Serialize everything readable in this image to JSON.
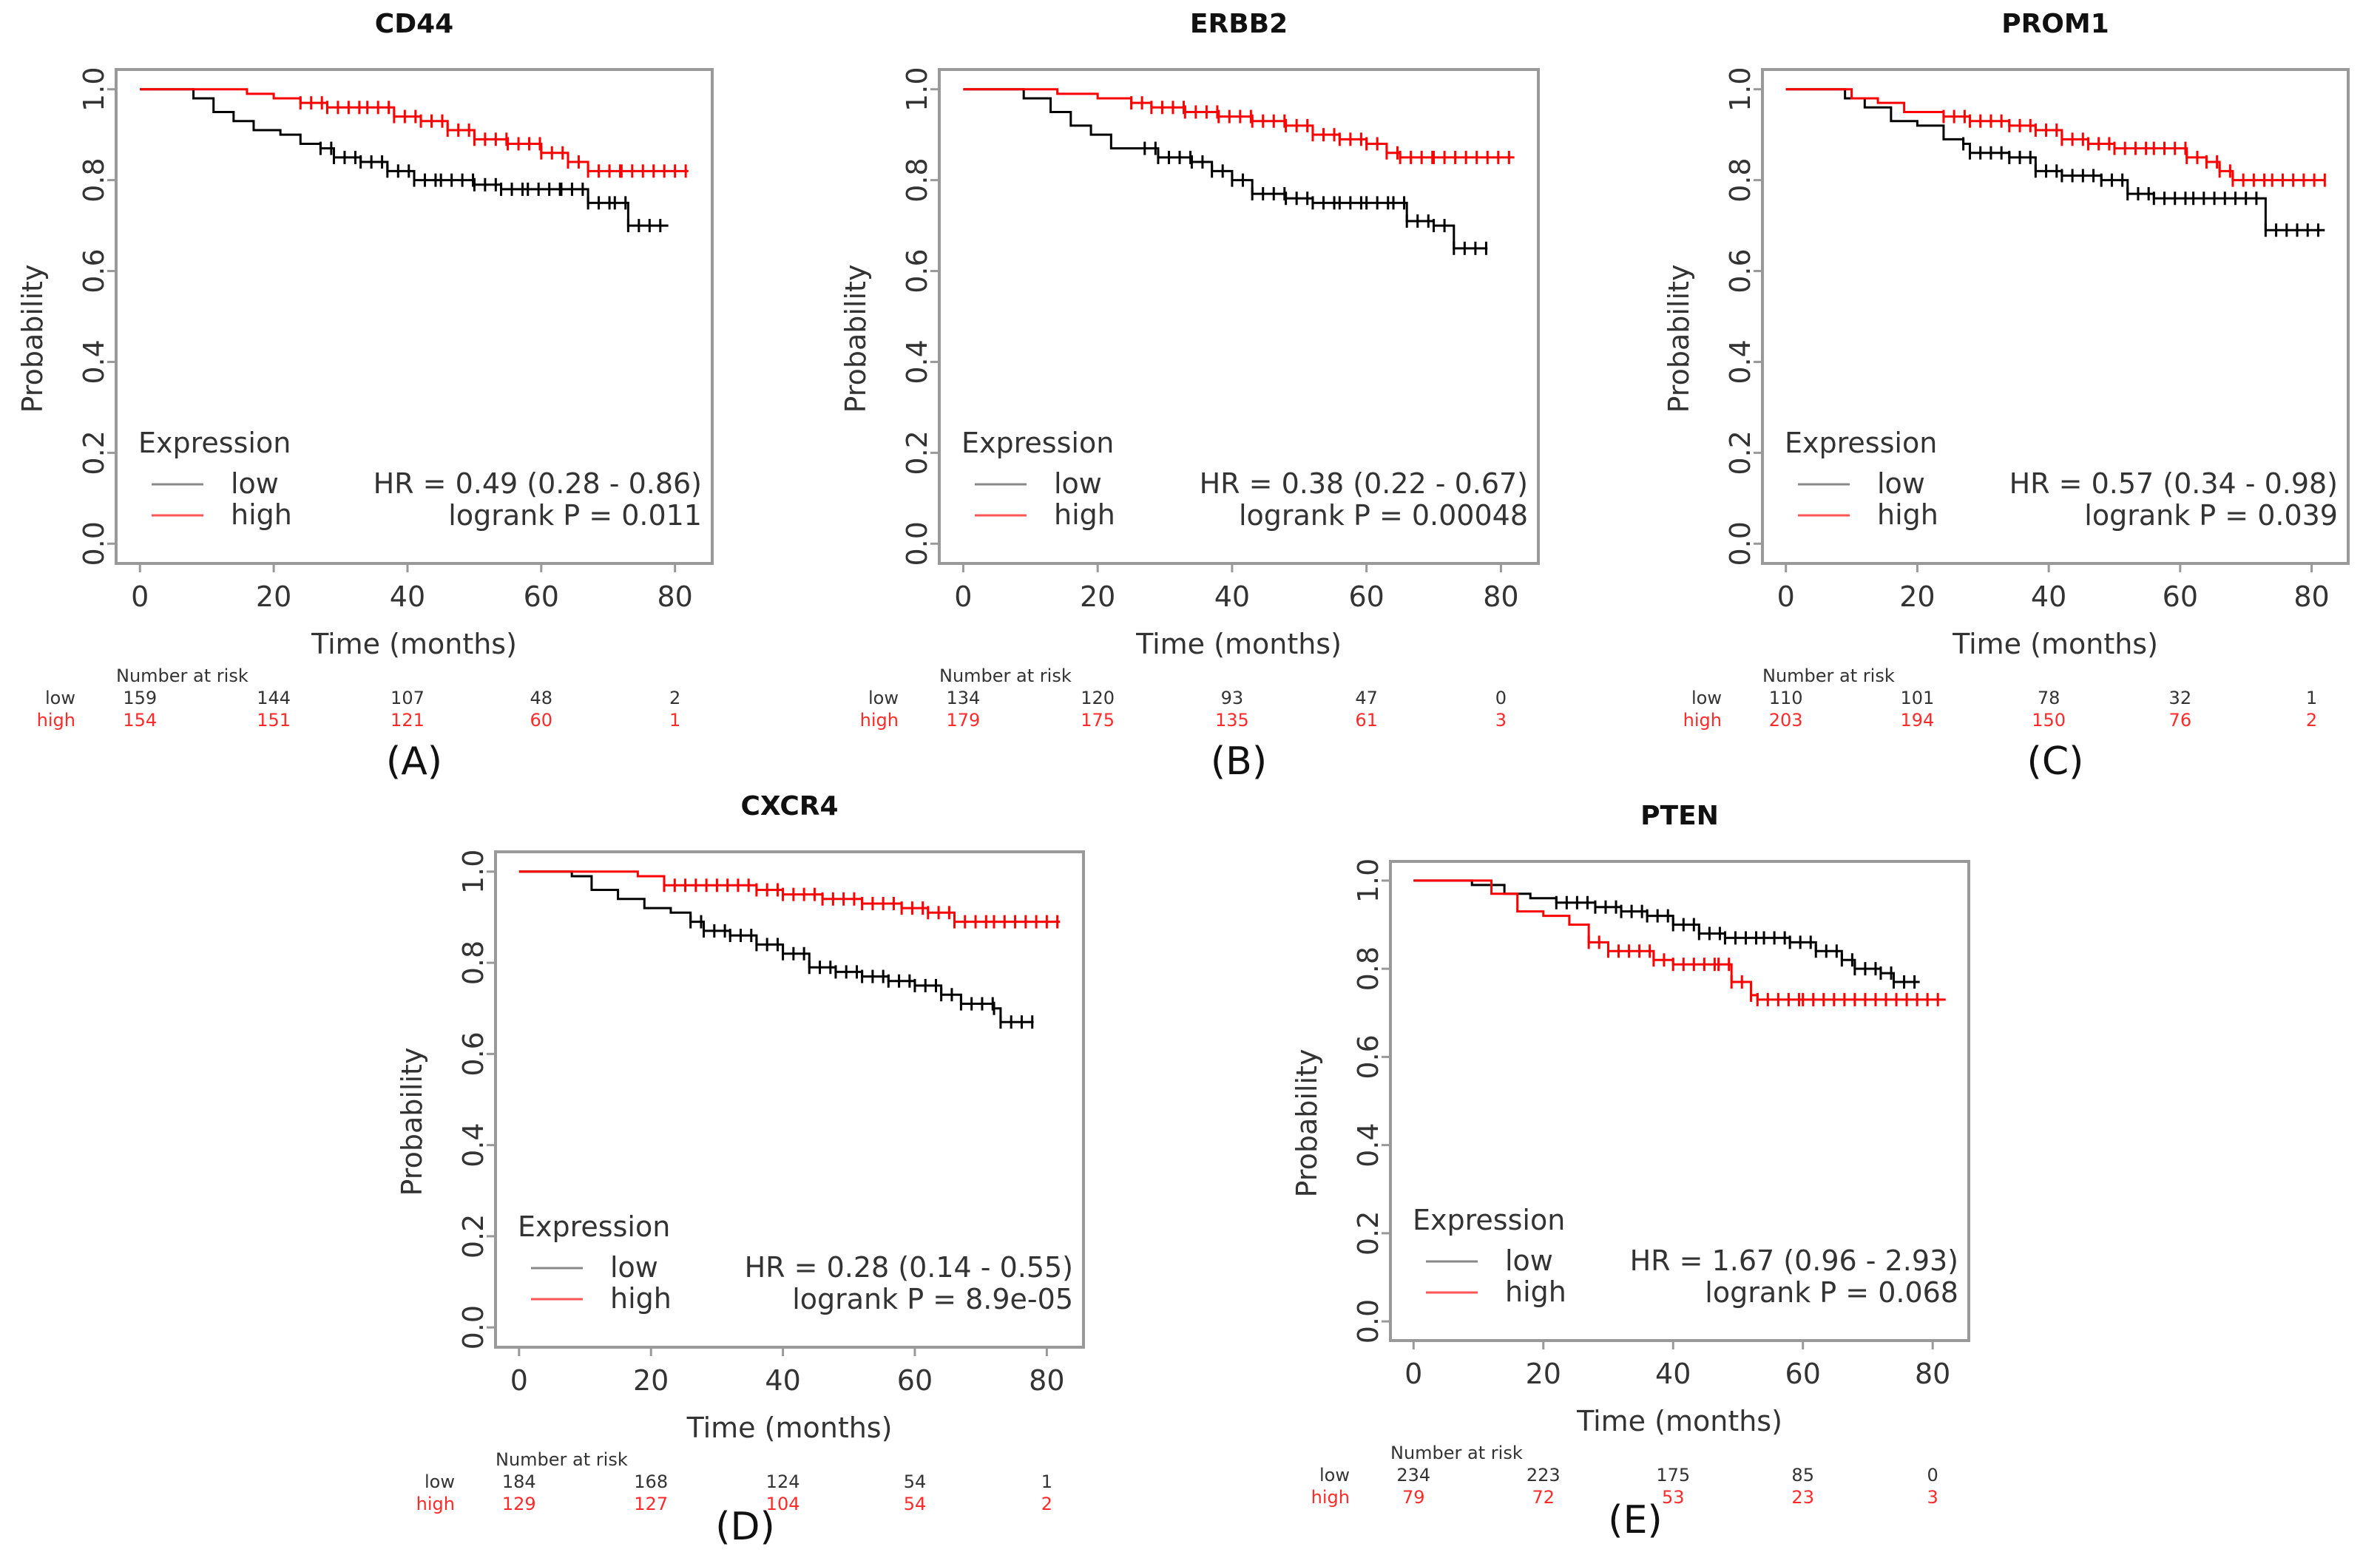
{
  "figure": {
    "colors": {
      "low": "#000000",
      "high": "#ff0000",
      "axis": "#999999",
      "low_legend": "#888888",
      "high_legend": "#ff5555"
    }
  },
  "chart_data": [
    {
      "type": "line",
      "panel_label": "(A)",
      "title": "CD44",
      "xlabel": "Time (months)",
      "ylabel": "Probability",
      "xlim": [
        0,
        82
      ],
      "ylim": [
        0,
        1
      ],
      "xticks": [
        "0",
        "20",
        "40",
        "60",
        "80"
      ],
      "yticks": [
        "0.0",
        "0.2",
        "0.4",
        "0.6",
        "0.8",
        "1.0"
      ],
      "legend": {
        "title": "Expression",
        "items": [
          "low",
          "high"
        ],
        "position": "bottom-left"
      },
      "stats": {
        "hr": "HR = 0.49 (0.28 - 0.86)",
        "logrank": "logrank P = 0.011"
      },
      "series": [
        {
          "name": "low",
          "points": [
            [
              0,
              1
            ],
            [
              5,
              1
            ],
            [
              8,
              0.98
            ],
            [
              11,
              0.95
            ],
            [
              14,
              0.93
            ],
            [
              17,
              0.91
            ],
            [
              21,
              0.9
            ],
            [
              24,
              0.88
            ],
            [
              27,
              0.87
            ],
            [
              29,
              0.85
            ],
            [
              33,
              0.84
            ],
            [
              37,
              0.82
            ],
            [
              41,
              0.8
            ],
            [
              45,
              0.8
            ],
            [
              50,
              0.79
            ],
            [
              54,
              0.78
            ],
            [
              58,
              0.78
            ],
            [
              63,
              0.78
            ],
            [
              67,
              0.75
            ],
            [
              71,
              0.75
            ],
            [
              73,
              0.7
            ],
            [
              79,
              0.7
            ]
          ]
        },
        {
          "name": "high",
          "points": [
            [
              0,
              1
            ],
            [
              13,
              1
            ],
            [
              16,
              0.99
            ],
            [
              20,
              0.98
            ],
            [
              24,
              0.97
            ],
            [
              28,
              0.96
            ],
            [
              34,
              0.96
            ],
            [
              38,
              0.94
            ],
            [
              42,
              0.93
            ],
            [
              46,
              0.91
            ],
            [
              50,
              0.89
            ],
            [
              55,
              0.88
            ],
            [
              60,
              0.86
            ],
            [
              64,
              0.84
            ],
            [
              67,
              0.82
            ],
            [
              72,
              0.82
            ],
            [
              82,
              0.82
            ]
          ]
        }
      ],
      "risk_table": {
        "header": "Number at risk",
        "times": [
          0,
          20,
          40,
          60,
          80
        ],
        "low_label": "low",
        "high_label": "high",
        "low": [
          "159",
          "144",
          "107",
          "48",
          "2"
        ],
        "high": [
          "154",
          "151",
          "121",
          "60",
          "1"
        ]
      }
    },
    {
      "type": "line",
      "panel_label": "(B)",
      "title": "ERBB2",
      "xlabel": "Time (months)",
      "ylabel": "Probability",
      "xlim": [
        0,
        82
      ],
      "ylim": [
        0,
        1
      ],
      "xticks": [
        "0",
        "20",
        "40",
        "60",
        "80"
      ],
      "yticks": [
        "0.0",
        "0.2",
        "0.4",
        "0.6",
        "0.8",
        "1.0"
      ],
      "legend": {
        "title": "Expression",
        "items": [
          "low",
          "high"
        ],
        "position": "bottom-left"
      },
      "stats": {
        "hr": "HR = 0.38 (0.22 - 0.67)",
        "logrank": "logrank P = 0.00048"
      },
      "series": [
        {
          "name": "low",
          "points": [
            [
              0,
              1
            ],
            [
              6,
              1
            ],
            [
              9,
              0.98
            ],
            [
              13,
              0.95
            ],
            [
              16,
              0.92
            ],
            [
              19,
              0.9
            ],
            [
              22,
              0.87
            ],
            [
              27,
              0.87
            ],
            [
              29,
              0.85
            ],
            [
              34,
              0.84
            ],
            [
              37,
              0.82
            ],
            [
              40,
              0.8
            ],
            [
              43,
              0.77
            ],
            [
              48,
              0.76
            ],
            [
              52,
              0.75
            ],
            [
              56,
              0.75
            ],
            [
              60,
              0.75
            ],
            [
              64,
              0.75
            ],
            [
              66,
              0.71
            ],
            [
              70,
              0.7
            ],
            [
              73,
              0.65
            ],
            [
              78,
              0.65
            ]
          ]
        },
        {
          "name": "high",
          "points": [
            [
              0,
              1
            ],
            [
              9,
              1
            ],
            [
              14,
              0.99
            ],
            [
              20,
              0.98
            ],
            [
              25,
              0.97
            ],
            [
              28,
              0.96
            ],
            [
              33,
              0.95
            ],
            [
              38,
              0.94
            ],
            [
              43,
              0.93
            ],
            [
              48,
              0.92
            ],
            [
              52,
              0.9
            ],
            [
              56,
              0.89
            ],
            [
              60,
              0.88
            ],
            [
              63,
              0.86
            ],
            [
              65,
              0.85
            ],
            [
              70,
              0.85
            ],
            [
              82,
              0.85
            ]
          ]
        }
      ],
      "risk_table": {
        "header": "Number at risk",
        "times": [
          0,
          20,
          40,
          60,
          80
        ],
        "low_label": "low",
        "high_label": "high",
        "low": [
          "134",
          "120",
          "93",
          "47",
          "0"
        ],
        "high": [
          "179",
          "175",
          "135",
          "61",
          "3"
        ]
      }
    },
    {
      "type": "line",
      "panel_label": "(C)",
      "title": "PROM1",
      "xlabel": "Time (months)",
      "ylabel": "Probability",
      "xlim": [
        0,
        82
      ],
      "ylim": [
        0,
        1
      ],
      "xticks": [
        "0",
        "20",
        "40",
        "60",
        "80"
      ],
      "yticks": [
        "0.0",
        "0.2",
        "0.4",
        "0.6",
        "0.8",
        "1.0"
      ],
      "legend": {
        "title": "Expression",
        "items": [
          "low",
          "high"
        ],
        "position": "bottom-left"
      },
      "stats": {
        "hr": "HR = 0.57 (0.34 - 0.98)",
        "logrank": "logrank P = 0.039"
      },
      "series": [
        {
          "name": "low",
          "points": [
            [
              0,
              1
            ],
            [
              6,
              1
            ],
            [
              9,
              0.98
            ],
            [
              12,
              0.96
            ],
            [
              16,
              0.93
            ],
            [
              20,
              0.92
            ],
            [
              24,
              0.89
            ],
            [
              27,
              0.88
            ],
            [
              28,
              0.86
            ],
            [
              34,
              0.85
            ],
            [
              38,
              0.82
            ],
            [
              42,
              0.81
            ],
            [
              48,
              0.8
            ],
            [
              52,
              0.77
            ],
            [
              56,
              0.76
            ],
            [
              62,
              0.76
            ],
            [
              73,
              0.76
            ],
            [
              73,
              0.69
            ],
            [
              82,
              0.69
            ]
          ]
        },
        {
          "name": "high",
          "points": [
            [
              0,
              1
            ],
            [
              6,
              1
            ],
            [
              10,
              0.98
            ],
            [
              14,
              0.97
            ],
            [
              18,
              0.95
            ],
            [
              24,
              0.94
            ],
            [
              28,
              0.93
            ],
            [
              34,
              0.92
            ],
            [
              38,
              0.91
            ],
            [
              42,
              0.89
            ],
            [
              46,
              0.88
            ],
            [
              50,
              0.87
            ],
            [
              56,
              0.87
            ],
            [
              61,
              0.85
            ],
            [
              64,
              0.84
            ],
            [
              66,
              0.82
            ],
            [
              68,
              0.8
            ],
            [
              74,
              0.8
            ],
            [
              82,
              0.8
            ]
          ]
        }
      ],
      "risk_table": {
        "header": "Number at risk",
        "times": [
          0,
          20,
          40,
          60,
          80
        ],
        "low_label": "low",
        "high_label": "high",
        "low": [
          "110",
          "101",
          "78",
          "32",
          "1"
        ],
        "high": [
          "203",
          "194",
          "150",
          "76",
          "2"
        ]
      }
    },
    {
      "type": "line",
      "panel_label": "(D)",
      "title": "CXCR4",
      "xlabel": "Time (months)",
      "ylabel": "Probability",
      "xlim": [
        0,
        82
      ],
      "ylim": [
        0,
        1
      ],
      "xticks": [
        "0",
        "20",
        "40",
        "60",
        "80"
      ],
      "yticks": [
        "0.0",
        "0.2",
        "0.4",
        "0.6",
        "0.8",
        "1.0"
      ],
      "legend": {
        "title": "Expression",
        "items": [
          "low",
          "high"
        ],
        "position": "bottom-left"
      },
      "stats": {
        "hr": "HR = 0.28 (0.14 - 0.55)",
        "logrank": "logrank P = 8.9e-05"
      },
      "series": [
        {
          "name": "low",
          "points": [
            [
              0,
              1
            ],
            [
              5,
              1
            ],
            [
              8,
              0.99
            ],
            [
              11,
              0.96
            ],
            [
              15,
              0.94
            ],
            [
              19,
              0.92
            ],
            [
              23,
              0.91
            ],
            [
              26,
              0.89
            ],
            [
              28,
              0.87
            ],
            [
              32,
              0.86
            ],
            [
              36,
              0.84
            ],
            [
              40,
              0.82
            ],
            [
              44,
              0.79
            ],
            [
              48,
              0.78
            ],
            [
              52,
              0.77
            ],
            [
              56,
              0.76
            ],
            [
              60,
              0.75
            ],
            [
              64,
              0.73
            ],
            [
              67,
              0.71
            ],
            [
              72,
              0.7
            ],
            [
              73,
              0.67
            ],
            [
              78,
              0.67
            ]
          ]
        },
        {
          "name": "high",
          "points": [
            [
              0,
              1
            ],
            [
              16,
              1
            ],
            [
              18,
              0.99
            ],
            [
              22,
              0.97
            ],
            [
              30,
              0.97
            ],
            [
              36,
              0.96
            ],
            [
              40,
              0.95
            ],
            [
              46,
              0.94
            ],
            [
              52,
              0.93
            ],
            [
              58,
              0.92
            ],
            [
              62,
              0.91
            ],
            [
              66,
              0.89
            ],
            [
              72,
              0.89
            ],
            [
              82,
              0.89
            ]
          ]
        }
      ],
      "risk_table": {
        "header": "Number at risk",
        "times": [
          0,
          20,
          40,
          60,
          80
        ],
        "low_label": "low",
        "high_label": "high",
        "low": [
          "184",
          "168",
          "124",
          "54",
          "1"
        ],
        "high": [
          "129",
          "127",
          "104",
          "54",
          "2"
        ]
      }
    },
    {
      "type": "line",
      "panel_label": "(E)",
      "title": "PTEN",
      "xlabel": "Time (months)",
      "ylabel": "Probability",
      "xlim": [
        0,
        82
      ],
      "ylim": [
        0,
        1
      ],
      "xticks": [
        "0",
        "20",
        "40",
        "60",
        "80"
      ],
      "yticks": [
        "0.0",
        "0.2",
        "0.4",
        "0.6",
        "0.8",
        "1.0"
      ],
      "legend": {
        "title": "Expression",
        "items": [
          "low",
          "high"
        ],
        "position": "bottom-left"
      },
      "stats": {
        "hr": "HR = 1.67 (0.96 - 2.93)",
        "logrank": "logrank P = 0.068"
      },
      "series": [
        {
          "name": "low",
          "points": [
            [
              0,
              1
            ],
            [
              6,
              1
            ],
            [
              9,
              0.99
            ],
            [
              14,
              0.97
            ],
            [
              18,
              0.96
            ],
            [
              22,
              0.95
            ],
            [
              28,
              0.94
            ],
            [
              32,
              0.93
            ],
            [
              36,
              0.92
            ],
            [
              40,
              0.9
            ],
            [
              44,
              0.88
            ],
            [
              48,
              0.87
            ],
            [
              54,
              0.87
            ],
            [
              58,
              0.86
            ],
            [
              62,
              0.84
            ],
            [
              66,
              0.82
            ],
            [
              68,
              0.8
            ],
            [
              72,
              0.79
            ],
            [
              74,
              0.77
            ],
            [
              78,
              0.77
            ]
          ]
        },
        {
          "name": "high",
          "points": [
            [
              0,
              1
            ],
            [
              8,
              1
            ],
            [
              12,
              0.97
            ],
            [
              16,
              0.93
            ],
            [
              20,
              0.92
            ],
            [
              24,
              0.9
            ],
            [
              27,
              0.86
            ],
            [
              30,
              0.84
            ],
            [
              37,
              0.82
            ],
            [
              40,
              0.81
            ],
            [
              47,
              0.81
            ],
            [
              49,
              0.77
            ],
            [
              52,
              0.74
            ],
            [
              53,
              0.73
            ],
            [
              60,
              0.73
            ],
            [
              82,
              0.73
            ]
          ]
        }
      ],
      "risk_table": {
        "header": "Number at risk",
        "times": [
          0,
          20,
          40,
          60,
          80
        ],
        "low_label": "low",
        "high_label": "high",
        "low": [
          "234",
          "223",
          "175",
          "85",
          "0"
        ],
        "high": [
          "79",
          "72",
          "53",
          "23",
          "3"
        ]
      }
    }
  ]
}
